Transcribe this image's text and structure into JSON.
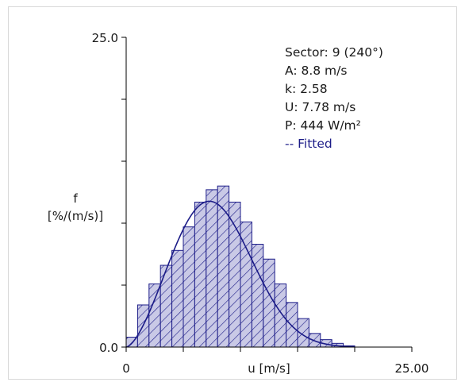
{
  "chart_data": {
    "type": "bar",
    "title": "",
    "xlabel": "u [m/s]",
    "ylabel_line1": "f",
    "ylabel_line2": "[%/(m/s)]",
    "xlim": [
      0,
      25
    ],
    "ylim": [
      0,
      25
    ],
    "x_tick_labels": [
      "0",
      "25.00"
    ],
    "y_tick_labels": [
      "0.0",
      "25.0"
    ],
    "bin_width": 1,
    "bin_starts": [
      0,
      1,
      2,
      3,
      4,
      5,
      6,
      7,
      8,
      9,
      10,
      11,
      12,
      13,
      14,
      15,
      16,
      17,
      18,
      19
    ],
    "values": [
      0.8,
      3.4,
      5.1,
      6.6,
      7.8,
      9.7,
      11.7,
      12.7,
      13.0,
      11.7,
      10.1,
      8.3,
      7.1,
      5.1,
      3.6,
      2.3,
      1.1,
      0.6,
      0.3,
      0.1
    ],
    "weibull": {
      "A": 8.8,
      "k": 2.58
    },
    "colors": {
      "bar_fill": "#c9c9e6",
      "bar_edge": "#1c1c88",
      "hatch": "#1c1c88",
      "fit_line": "#1c1c88"
    }
  },
  "info": {
    "sector": "Sector: 9 (240°)",
    "A": "A: 8.8 m/s",
    "k": "k: 2.58",
    "U": "U: 7.78 m/s",
    "P": "P: 444 W/m²",
    "fitted": "-- Fitted"
  }
}
